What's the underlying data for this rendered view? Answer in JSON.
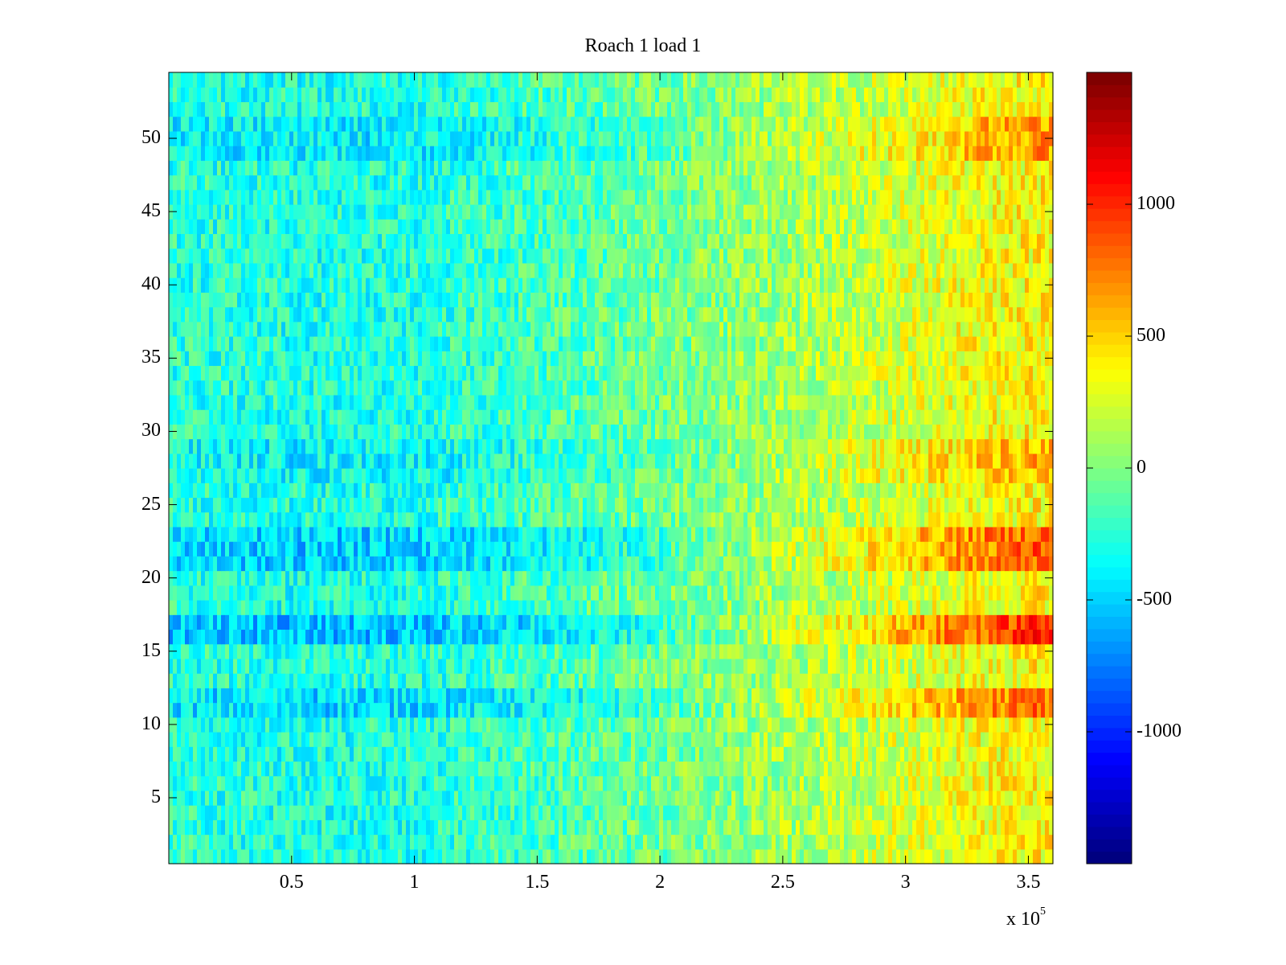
{
  "chart_data": {
    "type": "heatmap",
    "title": "Roach 1 load 1",
    "xlabel": "",
    "ylabel": "",
    "x_scale_label": "x 10",
    "x_scale_exponent": "5",
    "xlim": [
      0,
      3.6
    ],
    "ylim": [
      0.5,
      54.5
    ],
    "x_ticks": [
      0.5,
      1,
      1.5,
      2,
      2.5,
      3,
      3.5
    ],
    "x_tick_labels": [
      "0.5",
      "1",
      "1.5",
      "2",
      "2.5",
      "3",
      "3.5"
    ],
    "y_ticks": [
      5,
      10,
      15,
      20,
      25,
      30,
      35,
      40,
      45,
      50
    ],
    "y_tick_labels": [
      "5",
      "10",
      "15",
      "20",
      "25",
      "30",
      "35",
      "40",
      "45",
      "50"
    ],
    "rows": 54,
    "colormap": "jet",
    "clim": [
      -1500,
      1500
    ],
    "colorbar_ticks": [
      1000,
      500,
      0,
      -500,
      -1000
    ],
    "colorbar_tick_labels": [
      "1000",
      "500",
      "0",
      "-500",
      "-1000"
    ],
    "trend_profile": {
      "x": [
        0,
        0.5,
        1.0,
        1.5,
        2.0,
        2.5,
        3.0,
        3.3,
        3.6
      ],
      "mean": [
        -250,
        -300,
        -280,
        -180,
        -50,
        100,
        250,
        350,
        400
      ]
    },
    "row_offsets": {
      "rows_11_to_12": 300,
      "rows_16_to_17": 450,
      "rows_21_to_23": 350,
      "rows_49_to_51": 200,
      "rows_27_to_29": 150
    }
  }
}
